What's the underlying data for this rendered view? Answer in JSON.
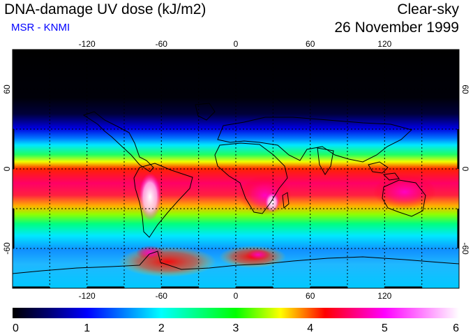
{
  "header": {
    "title": "DNA-damage UV dose (kJ/m2)",
    "subtitle": "MSR - KNMI",
    "condition": "Clear-sky",
    "date": "26 November 1999"
  },
  "map": {
    "projection": "equirectangular",
    "longitude_ticks": [
      "-120",
      "-60",
      "0",
      "60",
      "120"
    ],
    "latitude_ticks_left": [
      "60",
      "0",
      "-60"
    ],
    "latitude_ticks_right": [
      "60",
      "0",
      "-60"
    ],
    "gridlines": "dotted every 30 degrees",
    "variable": "DNA-damage UV dose",
    "units": "kJ/m2"
  },
  "colorbar": {
    "labels": [
      "0",
      "1",
      "2",
      "3",
      "4",
      "5",
      "6"
    ],
    "min": 0,
    "max": 6,
    "colors": [
      "#000000",
      "#0000ff",
      "#00ffff",
      "#00ff00",
      "#ffff00",
      "#ff0000",
      "#ff00ff",
      "#ffffff"
    ]
  }
}
